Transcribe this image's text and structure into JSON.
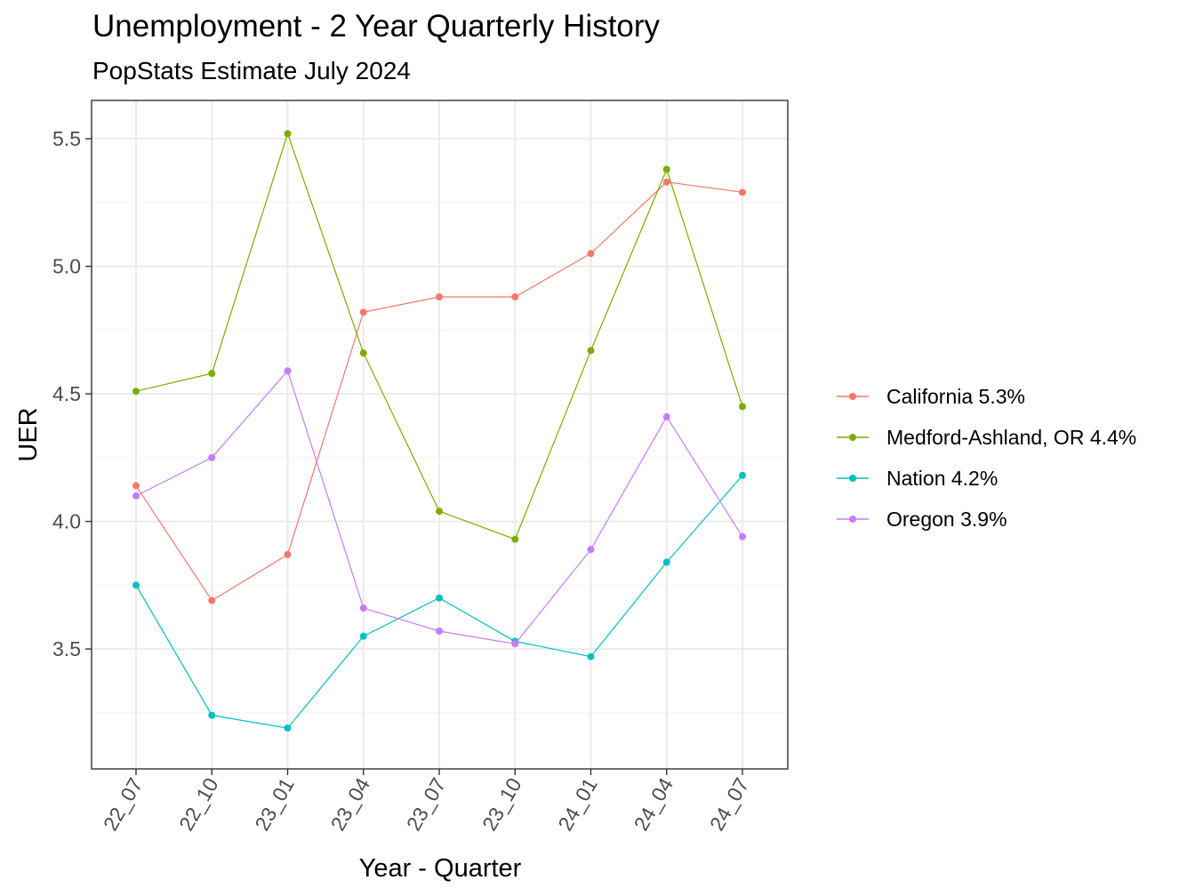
{
  "chart_data": {
    "type": "line",
    "title": "Unemployment - 2 Year Quarterly History",
    "subtitle": "PopStats Estimate July 2024",
    "xlabel": "Year - Quarter",
    "ylabel": "UER",
    "categories": [
      "22_07",
      "22_10",
      "23_01",
      "23_04",
      "23_07",
      "23_10",
      "24_01",
      "24_04",
      "24_07"
    ],
    "ylim": [
      3.03,
      5.65
    ],
    "yticks": [
      "3.5",
      "4.0",
      "4.5",
      "5.0",
      "5.5"
    ],
    "grid": true,
    "legend_position": "right",
    "series": [
      {
        "name": "California 5.3%",
        "color": "#F8766D",
        "values": [
          4.14,
          3.69,
          3.87,
          4.82,
          4.88,
          4.88,
          5.05,
          5.33,
          5.29
        ]
      },
      {
        "name": "Medford-Ashland, OR 4.4%",
        "color": "#7CAE00",
        "values": [
          4.51,
          4.58,
          5.52,
          4.66,
          4.04,
          3.93,
          4.67,
          5.38,
          4.45
        ]
      },
      {
        "name": "Nation 4.2%",
        "color": "#00BFC4",
        "values": [
          3.75,
          3.24,
          3.19,
          3.55,
          3.7,
          3.53,
          3.47,
          3.84,
          4.18
        ]
      },
      {
        "name": "Oregon 3.9%",
        "color": "#C77CFF",
        "values": [
          4.1,
          4.25,
          4.59,
          3.66,
          3.57,
          3.52,
          3.89,
          4.41,
          3.94
        ]
      }
    ]
  }
}
